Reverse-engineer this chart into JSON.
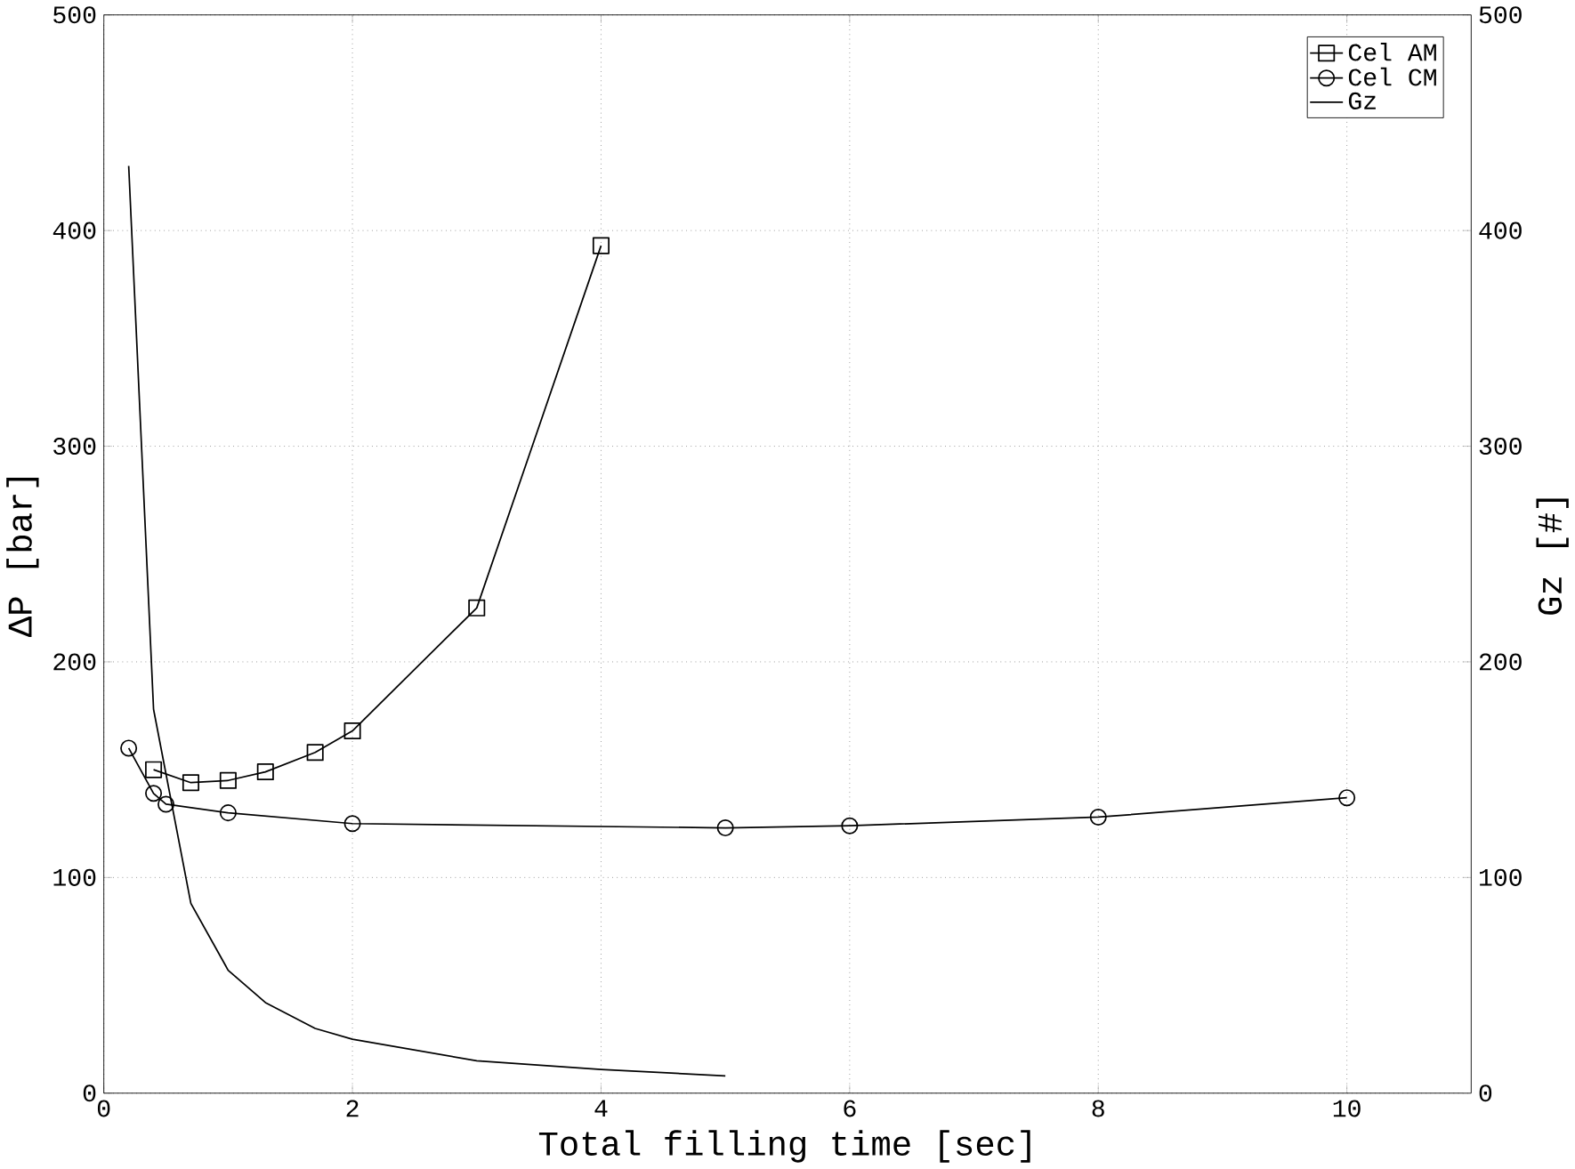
{
  "chart_data": {
    "type": "line",
    "xlabel": "Total filling time [sec]",
    "ylabel": "ΔP [bar]",
    "y2label": "Gz  [#]",
    "xlim": [
      0,
      11
    ],
    "xticks": [
      0,
      2,
      4,
      6,
      8,
      10
    ],
    "ylim": [
      0,
      500
    ],
    "yticks": [
      0,
      100,
      200,
      300,
      400,
      500
    ],
    "y2lim": [
      0,
      500
    ],
    "y2ticks": [
      0,
      100,
      200,
      300,
      400,
      500
    ],
    "grid": true,
    "legend": "top right",
    "line_style": "solid",
    "series": [
      {
        "name": "Cel AM",
        "color": "#000000",
        "marker": "square",
        "x": [
          0.4,
          0.7,
          1.0,
          1.3,
          1.7,
          2,
          3,
          4
        ],
        "values": [
          150,
          144,
          145,
          149,
          158,
          168,
          225,
          393
        ]
      },
      {
        "name": "Cel CM",
        "color": "#000000",
        "marker": "circle",
        "x": [
          0.2,
          0.4,
          0.5,
          1,
          2,
          5,
          6,
          8,
          10
        ],
        "values": [
          160,
          139,
          134,
          130,
          125,
          123,
          124,
          128,
          137
        ]
      },
      {
        "name": "Gz",
        "color": "#000000",
        "marker": "none",
        "axis": "y2",
        "x": [
          0.2,
          0.4,
          0.7,
          1.0,
          1.3,
          1.7,
          2,
          3,
          4,
          5
        ],
        "values": [
          430,
          178,
          88,
          57,
          42,
          30,
          25,
          15,
          11,
          8
        ]
      }
    ]
  }
}
